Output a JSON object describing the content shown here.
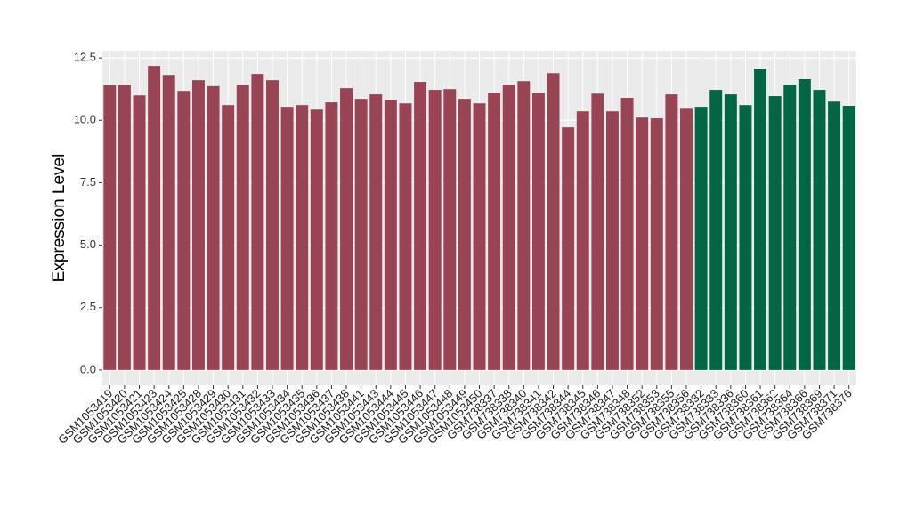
{
  "chart_data": {
    "type": "bar",
    "y_label": "Expression Level",
    "categories": [
      "GSM1053419",
      "GSM1053420",
      "GSM1053421",
      "GSM1053423",
      "GSM1053424",
      "GSM1053425",
      "GSM1053428",
      "GSM1053429",
      "GSM1053430",
      "GSM1053431",
      "GSM1053432",
      "GSM1053433",
      "GSM1053434",
      "GSM1053435",
      "GSM1053436",
      "GSM1053437",
      "GSM1053438",
      "GSM1053441",
      "GSM1053443",
      "GSM1053444",
      "GSM1053445",
      "GSM1053446",
      "GSM1053447",
      "GSM1053448",
      "GSM1053449",
      "GSM1053450",
      "GSM738337",
      "GSM738338",
      "GSM738340",
      "GSM738341",
      "GSM738342",
      "GSM738344",
      "GSM738345",
      "GSM738346",
      "GSM738347",
      "GSM738348",
      "GSM738352",
      "GSM738353",
      "GSM738355",
      "GSM738356",
      "GSM738332",
      "GSM738333",
      "GSM738336",
      "GSM738360",
      "GSM738361",
      "GSM738362",
      "GSM738364",
      "GSM738366",
      "GSM738369",
      "GSM738371",
      "GSM738376"
    ],
    "values": [
      11.4,
      11.43,
      11.0,
      12.18,
      11.82,
      11.18,
      11.61,
      11.37,
      10.61,
      11.43,
      11.86,
      11.61,
      10.54,
      10.61,
      10.43,
      10.72,
      11.29,
      10.86,
      11.04,
      10.83,
      10.68,
      11.54,
      11.22,
      11.25,
      10.86,
      10.68,
      11.11,
      11.43,
      11.57,
      11.11,
      11.89,
      9.72,
      10.36,
      11.07,
      10.36,
      10.9,
      10.11,
      10.08,
      11.04,
      10.5,
      10.54,
      11.22,
      11.04,
      10.61,
      12.07,
      10.97,
      11.43,
      11.65,
      11.22,
      10.75,
      10.58
    ],
    "colors": [
      "#994455",
      "#994455",
      "#994455",
      "#994455",
      "#994455",
      "#994455",
      "#994455",
      "#994455",
      "#994455",
      "#994455",
      "#994455",
      "#994455",
      "#994455",
      "#994455",
      "#994455",
      "#994455",
      "#994455",
      "#994455",
      "#994455",
      "#994455",
      "#994455",
      "#994455",
      "#994455",
      "#994455",
      "#994455",
      "#994455",
      "#994455",
      "#994455",
      "#994455",
      "#994455",
      "#994455",
      "#994455",
      "#994455",
      "#994455",
      "#994455",
      "#994455",
      "#994455",
      "#994455",
      "#994455",
      "#994455",
      "#006644",
      "#006644",
      "#006644",
      "#006644",
      "#006644",
      "#006644",
      "#006644",
      "#006644",
      "#006644",
      "#006644",
      "#006644"
    ],
    "ylim": [
      -0.61,
      12.79
    ],
    "yticks": [
      {
        "value": 0,
        "label": "0.0"
      },
      2.5,
      {
        "value": 5,
        "label": "5.0"
      },
      7.5,
      {
        "value": 10,
        "label": "10.0"
      },
      12.5
    ],
    "grid": true
  }
}
